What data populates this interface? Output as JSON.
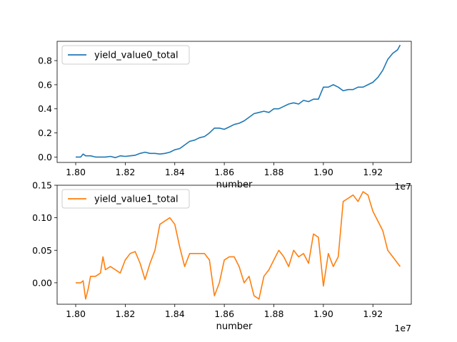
{
  "chart_data": [
    {
      "type": "line",
      "xlabel": "number",
      "x_offset_text": "1e7",
      "x_ticks": [
        "1.80",
        "1.82",
        "1.84",
        "1.86",
        "1.88",
        "1.90",
        "1.92"
      ],
      "x_tick_values": [
        1.8,
        1.82,
        1.84,
        1.86,
        1.88,
        1.9,
        1.92
      ],
      "y_ticks": [
        "0.0",
        "0.2",
        "0.4",
        "0.6",
        "0.8"
      ],
      "y_tick_values": [
        0.0,
        0.2,
        0.4,
        0.6,
        0.8
      ],
      "xlim": [
        1.7925,
        1.9355
      ],
      "ylim": [
        -0.045,
        0.96
      ],
      "legend_position": "top-left",
      "series": [
        {
          "name": "yield_value0_total",
          "color": "#1f77b4",
          "x": [
            1.8,
            1.802,
            1.803,
            1.804,
            1.806,
            1.808,
            1.81,
            1.812,
            1.814,
            1.816,
            1.818,
            1.82,
            1.822,
            1.824,
            1.826,
            1.828,
            1.83,
            1.832,
            1.834,
            1.836,
            1.838,
            1.84,
            1.842,
            1.844,
            1.846,
            1.848,
            1.85,
            1.852,
            1.854,
            1.856,
            1.858,
            1.86,
            1.862,
            1.864,
            1.866,
            1.868,
            1.87,
            1.872,
            1.874,
            1.876,
            1.878,
            1.88,
            1.882,
            1.884,
            1.886,
            1.888,
            1.89,
            1.892,
            1.894,
            1.896,
            1.898,
            1.9,
            1.902,
            1.904,
            1.906,
            1.908,
            1.91,
            1.912,
            1.914,
            1.916,
            1.918,
            1.92,
            1.922,
            1.924,
            1.926,
            1.928,
            1.93,
            1.931
          ],
          "y": [
            0.0,
            0.0,
            0.025,
            0.01,
            0.01,
            0.0,
            0.0,
            0.0,
            0.005,
            -0.005,
            0.01,
            0.005,
            0.01,
            0.015,
            0.03,
            0.04,
            0.03,
            0.03,
            0.025,
            0.03,
            0.04,
            0.06,
            0.07,
            0.1,
            0.13,
            0.14,
            0.16,
            0.17,
            0.2,
            0.24,
            0.24,
            0.23,
            0.25,
            0.27,
            0.28,
            0.3,
            0.33,
            0.36,
            0.37,
            0.38,
            0.37,
            0.4,
            0.4,
            0.42,
            0.44,
            0.45,
            0.44,
            0.47,
            0.46,
            0.48,
            0.48,
            0.58,
            0.58,
            0.6,
            0.58,
            0.55,
            0.56,
            0.56,
            0.58,
            0.58,
            0.6,
            0.62,
            0.66,
            0.72,
            0.81,
            0.86,
            0.89,
            0.93
          ]
        }
      ]
    },
    {
      "type": "line",
      "xlabel": "number",
      "x_offset_text": "1e7",
      "x_ticks": [
        "1.80",
        "1.82",
        "1.84",
        "1.86",
        "1.88",
        "1.90",
        "1.92"
      ],
      "x_tick_values": [
        1.8,
        1.82,
        1.84,
        1.86,
        1.88,
        1.9,
        1.92
      ],
      "y_ticks": [
        "0.00",
        "0.05",
        "0.10",
        "0.15"
      ],
      "y_tick_values": [
        0.0,
        0.05,
        0.1,
        0.15
      ],
      "xlim": [
        1.7925,
        1.9355
      ],
      "ylim": [
        -0.033,
        0.15
      ],
      "legend_position": "top-left",
      "series": [
        {
          "name": "yield_value1_total",
          "color": "#ff7f0e",
          "x": [
            1.8,
            1.802,
            1.803,
            1.804,
            1.805,
            1.806,
            1.808,
            1.81,
            1.811,
            1.812,
            1.814,
            1.816,
            1.818,
            1.82,
            1.822,
            1.824,
            1.826,
            1.828,
            1.83,
            1.832,
            1.834,
            1.836,
            1.838,
            1.84,
            1.842,
            1.844,
            1.846,
            1.848,
            1.85,
            1.852,
            1.854,
            1.856,
            1.858,
            1.86,
            1.862,
            1.864,
            1.866,
            1.868,
            1.87,
            1.872,
            1.874,
            1.876,
            1.878,
            1.88,
            1.882,
            1.884,
            1.886,
            1.888,
            1.89,
            1.892,
            1.894,
            1.896,
            1.898,
            1.9,
            1.902,
            1.904,
            1.906,
            1.908,
            1.91,
            1.912,
            1.914,
            1.916,
            1.918,
            1.92,
            1.922,
            1.924,
            1.926,
            1.928,
            1.93,
            1.931
          ],
          "y": [
            0.0,
            0.0,
            0.003,
            -0.025,
            -0.01,
            0.01,
            0.01,
            0.015,
            0.04,
            0.02,
            0.025,
            0.02,
            0.015,
            0.035,
            0.045,
            0.048,
            0.03,
            0.005,
            0.03,
            0.05,
            0.09,
            0.095,
            0.1,
            0.09,
            0.055,
            0.025,
            0.045,
            0.045,
            0.045,
            0.045,
            0.035,
            -0.02,
            0.0,
            0.035,
            0.04,
            0.04,
            0.025,
            0.0,
            0.01,
            -0.02,
            -0.025,
            0.01,
            0.02,
            0.035,
            0.05,
            0.04,
            0.025,
            0.05,
            0.04,
            0.045,
            0.03,
            0.075,
            0.07,
            -0.005,
            0.045,
            0.025,
            0.04,
            0.125,
            0.13,
            0.135,
            0.125,
            0.14,
            0.135,
            0.11,
            0.095,
            0.08,
            0.05,
            0.04,
            0.03,
            0.025
          ]
        }
      ]
    }
  ]
}
